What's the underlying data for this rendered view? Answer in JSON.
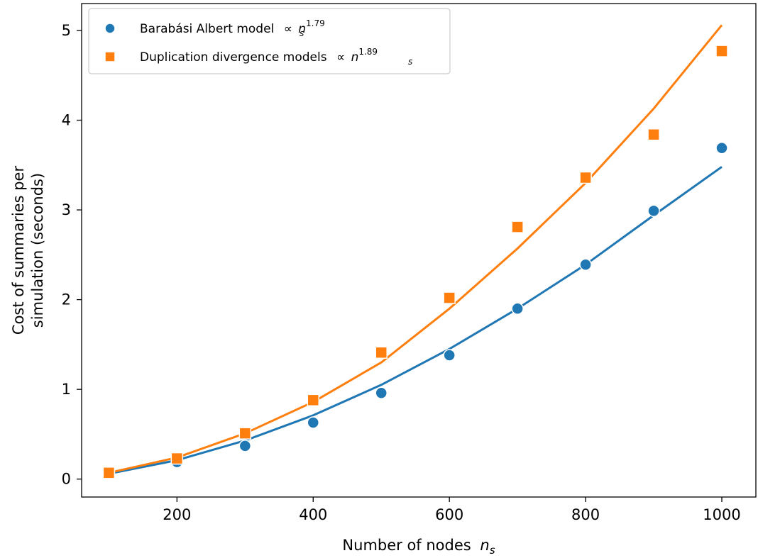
{
  "chart_data": {
    "type": "scatter",
    "xlabel": "Number of nodes",
    "xlabel_var": "n",
    "xlabel_sub": "s",
    "ylabel_line1": "Cost of summaries per",
    "ylabel_line2": "simulation (seconds)",
    "xlim": [
      60,
      1050
    ],
    "ylim": [
      -0.2,
      5.3
    ],
    "xticks": [
      200,
      400,
      600,
      800,
      1000
    ],
    "yticks": [
      0,
      1,
      2,
      3,
      4,
      5
    ],
    "legend_position": "top-left",
    "series": [
      {
        "name": "Barabási Albert model",
        "name_suffix": "∝",
        "name_var": "n",
        "name_sub": "s",
        "name_exp": "1.79",
        "marker": "circle",
        "color": "#1f77b4",
        "x": [
          100,
          200,
          300,
          400,
          500,
          600,
          700,
          800,
          900,
          1000
        ],
        "y": [
          0.06,
          0.19,
          0.37,
          0.63,
          0.96,
          1.38,
          1.9,
          2.39,
          2.99,
          3.69
        ],
        "fit_y": [
          0.06,
          0.21,
          0.43,
          0.71,
          1.05,
          1.45,
          1.9,
          2.39,
          2.94,
          3.48
        ]
      },
      {
        "name": "Duplication divergence models",
        "name_suffix": "∝",
        "name_var": "n",
        "name_sub": "s",
        "name_exp": "1.89",
        "marker": "square",
        "color": "#ff7f0e",
        "x": [
          100,
          200,
          300,
          400,
          500,
          600,
          700,
          800,
          900,
          1000
        ],
        "y": [
          0.07,
          0.23,
          0.51,
          0.88,
          1.41,
          2.02,
          2.81,
          3.36,
          3.84,
          4.77
        ],
        "fit_y": [
          0.07,
          0.24,
          0.51,
          0.86,
          1.3,
          1.9,
          2.57,
          3.3,
          4.13,
          5.06
        ]
      }
    ]
  }
}
